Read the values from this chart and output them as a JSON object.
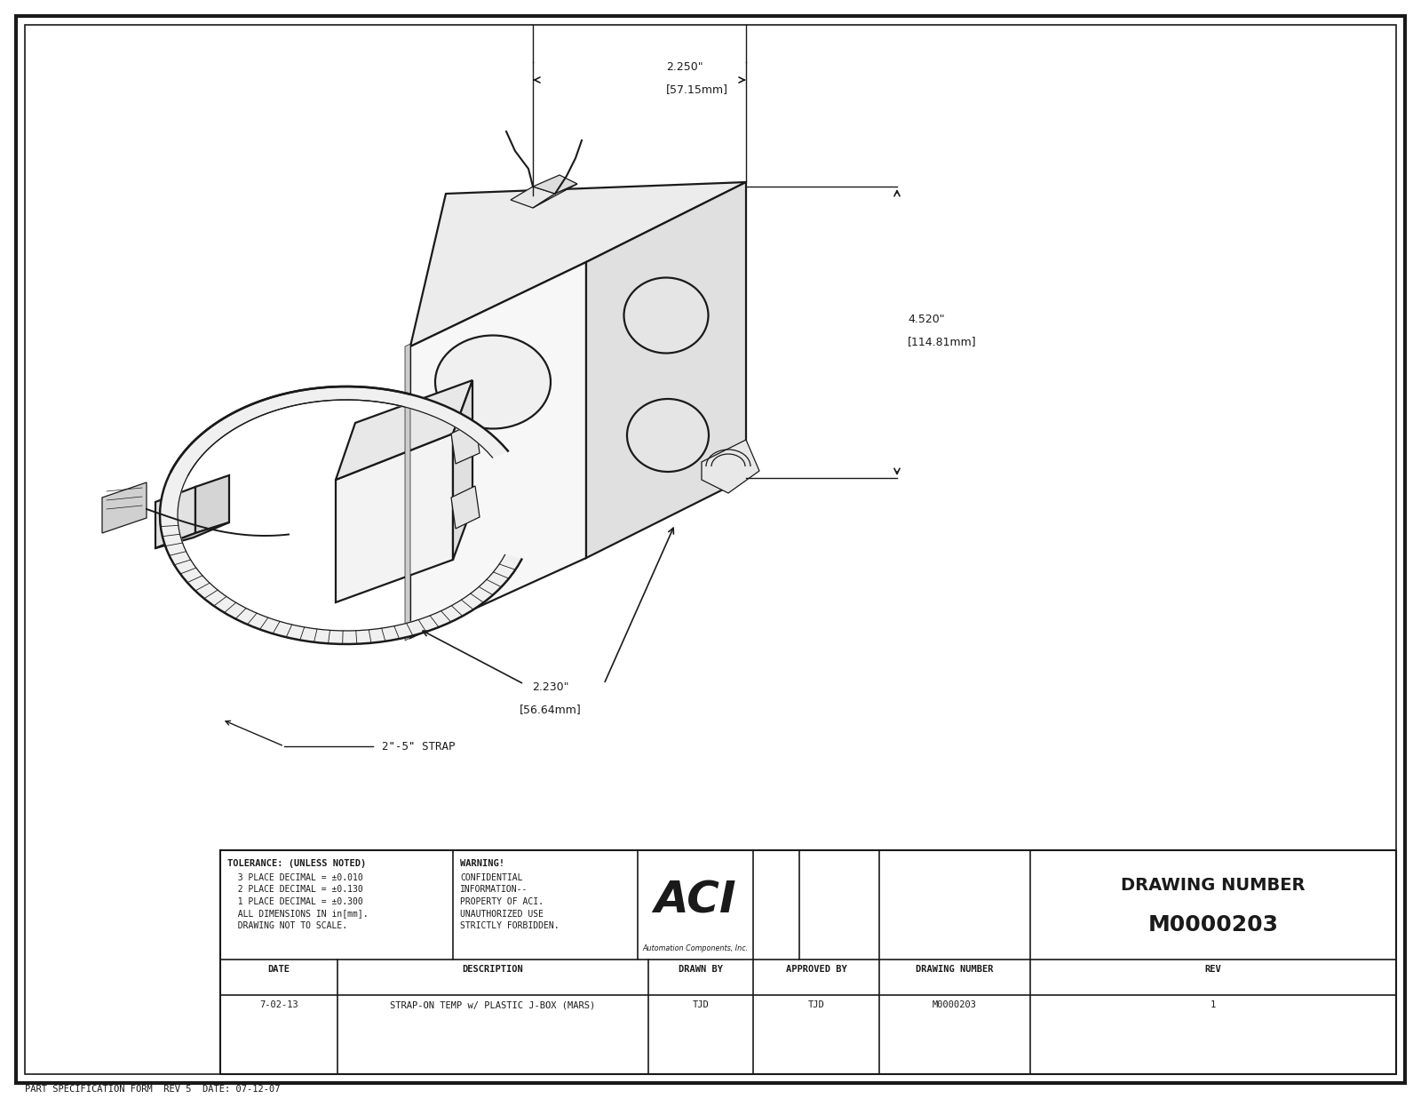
{
  "bg_color": "#ffffff",
  "line_color": "#1a1a1a",
  "tolerance_title": "TOLERANCE: (UNLESS NOTED)",
  "tolerance_lines": [
    "  3 PLACE DECIMAL = ±0.010",
    "  2 PLACE DECIMAL = ±0.130",
    "  1 PLACE DECIMAL = ±0.300",
    "  ALL DIMENSIONS IN in[mm].",
    "  DRAWING NOT TO SCALE."
  ],
  "warning_title": "WARNING!",
  "warning_lines": [
    "CONFIDENTIAL",
    "INFORMATION--",
    "PROPERTY OF ACI.",
    "UNAUTHORIZED USE",
    "STRICTLY FORBIDDEN."
  ],
  "aci_logo": "ACI",
  "aci_sub": "Automation Components, Inc.",
  "drawing_number_label": "DRAWING NUMBER",
  "drawing_number": "M0000203",
  "date_header": "DATE",
  "desc_header": "DESCRIPTION",
  "drawnby_header": "DRAWN BY",
  "approved_header": "APPROVED BY",
  "dnum_header": "DRAWING NUMBER",
  "rev_header": "REV",
  "date_val": "7-02-13",
  "desc_val": "STRAP-ON TEMP w/ PLASTIC J-BOX (MARS)",
  "drawnby_val": "TJD",
  "approved_val": "TJD",
  "dnum_val": "M0000203",
  "rev_val": "1",
  "footer_text": "PART SPECIFICATION FORM  REV 5  DATE: 07-12-07",
  "dim1_top": "2.250\"",
  "dim1_bot": "[57.15mm]",
  "dim2_top": "4.520\"",
  "dim2_bot": "[114.81mm]",
  "dim3_top": "2.230\"",
  "dim3_bot": "[56.64mm]",
  "strap_label": "2\"-5\" STRAP"
}
